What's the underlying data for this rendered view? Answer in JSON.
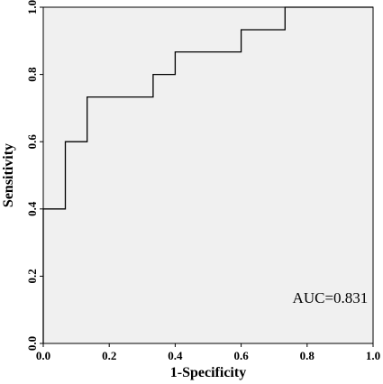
{
  "chart_data": {
    "type": "line",
    "title": "",
    "xlabel": "1-Specificity",
    "ylabel": "Sensitivity",
    "xlim": [
      0,
      1
    ],
    "ylim": [
      0,
      1
    ],
    "x_ticks": [
      "0.0",
      "0.2",
      "0.4",
      "0.6",
      "0.8",
      "1.0"
    ],
    "y_ticks": [
      "0.0",
      "0.2",
      "0.4",
      "0.6",
      "0.8",
      "1.0"
    ],
    "grid": false,
    "background": "#f0f0f0",
    "line_color": "#000000",
    "step": true,
    "series": [
      {
        "x": [
          0.0,
          0.0,
          0.067,
          0.067,
          0.133,
          0.133,
          0.333,
          0.333,
          0.4,
          0.4,
          0.6,
          0.6,
          0.733,
          0.733,
          1.0
        ],
        "y": [
          0.0,
          0.4,
          0.4,
          0.6,
          0.6,
          0.733,
          0.733,
          0.8,
          0.8,
          0.867,
          0.867,
          0.933,
          0.933,
          1.0,
          1.0
        ]
      }
    ],
    "annotations": [
      {
        "text": "AUC=0.831",
        "x": 0.87,
        "y": 0.12
      }
    ]
  }
}
